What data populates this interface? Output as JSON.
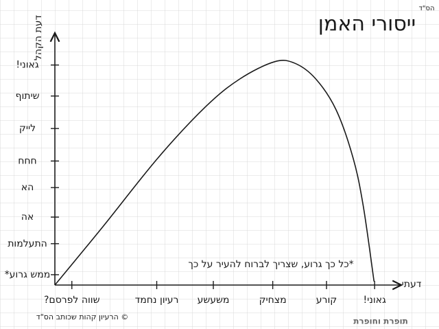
{
  "chart_data": {
    "type": "line",
    "title": "ייסורי האמן",
    "corner_label": "הס\"ד",
    "y_label": "דעת הקהל",
    "x_label": "דעתי",
    "annotation": "*כל כך גרוע, שצריך לברוח להעיר על כך",
    "credit": "© הרעיון קהות שכותב הס\"ד",
    "logo": "תופרת וחופרת",
    "color": "#1a1a1a",
    "xlim": [
      0,
      6
    ],
    "ylim": [
      0,
      8.5
    ],
    "xticks": [
      {
        "value": 0.3,
        "label": "שווה לפרסם?"
      },
      {
        "value": 1.8,
        "label": "רעיון נחמד"
      },
      {
        "value": 2.8,
        "label": "משעשע"
      },
      {
        "value": 3.85,
        "label": "מצחיק"
      },
      {
        "value": 4.8,
        "label": "קורע"
      },
      {
        "value": 5.65,
        "label": "גאוני!"
      }
    ],
    "yticks": [
      {
        "value": 0.35,
        "label": "ממש גרוע*"
      },
      {
        "value": 1.4,
        "label": "התעלמות"
      },
      {
        "value": 2.3,
        "label": "אה"
      },
      {
        "value": 3.3,
        "label": "הא"
      },
      {
        "value": 4.2,
        "label": "חחח"
      },
      {
        "value": 5.3,
        "label": "לייק"
      },
      {
        "value": 6.4,
        "label": "שיתוף"
      },
      {
        "value": 7.45,
        "label": "גאוני!"
      }
    ],
    "x": [
      0,
      0.85,
      1.82,
      2.67,
      3.27,
      3.88,
      4.24,
      4.61,
      4.97,
      5.27,
      5.45,
      5.64
    ],
    "values": [
      0,
      1.98,
      4.3,
      6.05,
      6.98,
      7.56,
      7.51,
      6.98,
      5.93,
      4.3,
      2.67,
      0.12
    ]
  }
}
